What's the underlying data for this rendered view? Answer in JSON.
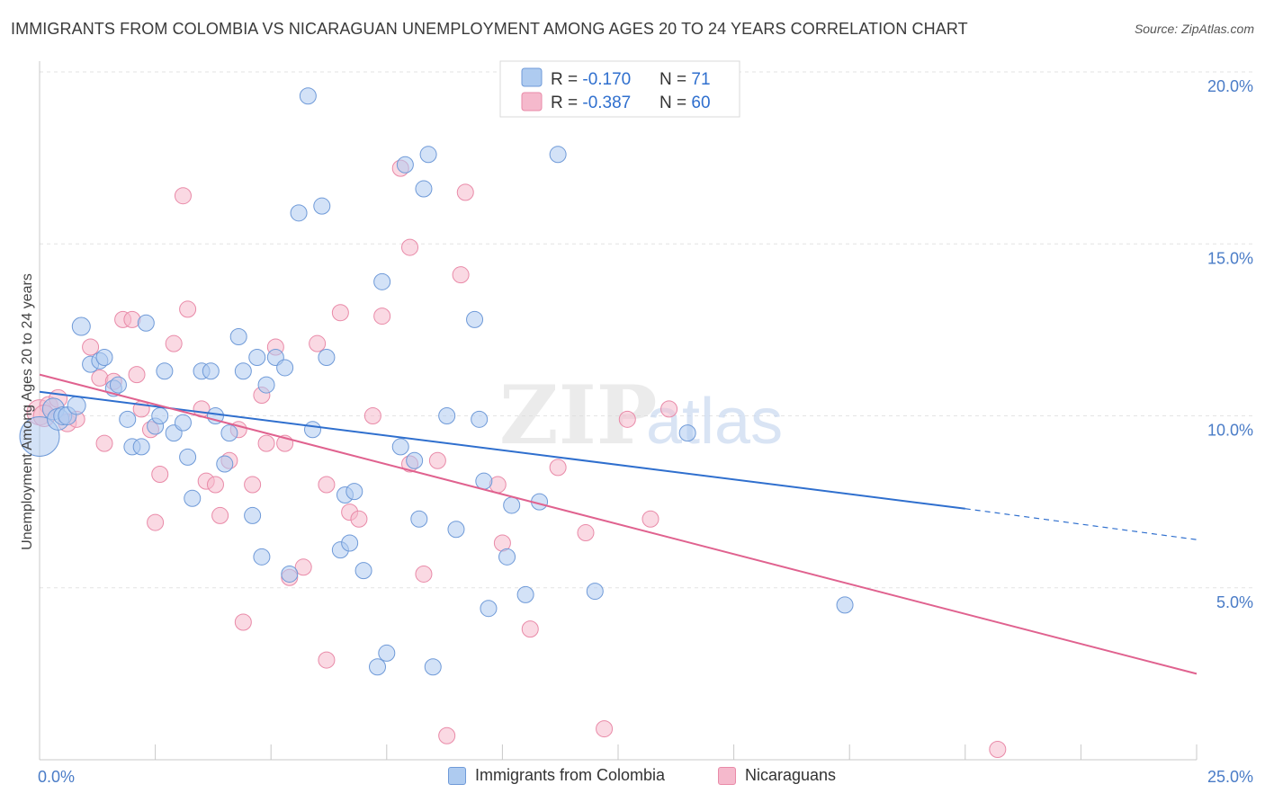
{
  "header": {
    "title": "IMMIGRANTS FROM COLOMBIA VS NICARAGUAN UNEMPLOYMENT AMONG AGES 20 TO 24 YEARS CORRELATION CHART",
    "source": "Source: ZipAtlas.com"
  },
  "watermark": {
    "zip": "ZIP",
    "atlas": "atlas"
  },
  "legend_box": {
    "rows": [
      {
        "r_label": "R = ",
        "r_value": "-0.170",
        "n_label": "N = ",
        "n_value": " 71"
      },
      {
        "r_label": "R = ",
        "r_value": "-0.387",
        "n_label": "N = ",
        "n_value": "60"
      }
    ]
  },
  "bottom_legend": {
    "items": [
      {
        "label": "Immigrants from Colombia"
      },
      {
        "label": "Nicaraguans"
      }
    ]
  },
  "colors": {
    "blue_fill": "#aecbf0",
    "blue_stroke": "#6f9ad8",
    "blue_line": "#2f6fce",
    "pink_fill": "#f5b9cc",
    "pink_stroke": "#e98aa8",
    "pink_line": "#e0628f",
    "tick_text": "#4a7cc7"
  },
  "chart_data": {
    "type": "scatter",
    "title": "IMMIGRANTS FROM COLOMBIA VS NICARAGUAN UNEMPLOYMENT AMONG AGES 20 TO 24 YEARS CORRELATION CHART",
    "xlabel": "",
    "ylabel": "Unemployment Among Ages 20 to 24 years",
    "xlim": [
      0,
      25
    ],
    "ylim": [
      0,
      20
    ],
    "x_tick_labels": [
      "0.0%",
      "25.0%"
    ],
    "y_tick_labels": [
      "5.0%",
      "10.0%",
      "15.0%",
      "20.0%"
    ],
    "y_ticks": [
      5,
      10,
      15,
      20
    ],
    "grid": true,
    "legend_position": "top-center",
    "series": [
      {
        "name": "Immigrants from Colombia",
        "r": -0.17,
        "n": 71,
        "trend": {
          "x0": 0,
          "y0": 10.7,
          "x1": 20,
          "y1": 7.3,
          "dashed_to_x": 25,
          "dashed_to_y": 6.4
        },
        "points": [
          [
            0.0,
            9.4,
            22
          ],
          [
            0.3,
            10.2,
            12
          ],
          [
            0.4,
            9.9,
            12
          ],
          [
            0.5,
            10.0,
            10
          ],
          [
            0.6,
            10.0,
            10
          ],
          [
            0.8,
            10.3,
            10
          ],
          [
            0.9,
            12.6,
            10
          ],
          [
            1.1,
            11.5,
            9
          ],
          [
            1.3,
            11.6,
            9
          ],
          [
            1.4,
            11.7,
            9
          ],
          [
            1.6,
            10.8,
            9
          ],
          [
            1.7,
            10.9,
            9
          ],
          [
            1.9,
            9.9,
            9
          ],
          [
            2.0,
            9.1,
            9
          ],
          [
            2.2,
            9.1,
            9
          ],
          [
            2.3,
            12.7,
            9
          ],
          [
            2.5,
            9.7,
            9
          ],
          [
            2.6,
            10.0,
            9
          ],
          [
            2.7,
            11.3,
            9
          ],
          [
            2.9,
            9.5,
            9
          ],
          [
            3.1,
            9.8,
            9
          ],
          [
            3.2,
            8.8,
            9
          ],
          [
            3.3,
            7.6,
            9
          ],
          [
            3.5,
            11.3,
            9
          ],
          [
            3.7,
            11.3,
            9
          ],
          [
            3.8,
            10.0,
            9
          ],
          [
            4.0,
            8.6,
            9
          ],
          [
            4.1,
            9.5,
            9
          ],
          [
            4.3,
            12.3,
            9
          ],
          [
            4.4,
            11.3,
            9
          ],
          [
            4.6,
            7.1,
            9
          ],
          [
            4.7,
            11.7,
            9
          ],
          [
            4.8,
            5.9,
            9
          ],
          [
            4.9,
            10.9,
            9
          ],
          [
            5.1,
            11.7,
            9
          ],
          [
            5.3,
            11.4,
            9
          ],
          [
            5.4,
            5.4,
            9
          ],
          [
            5.6,
            15.9,
            9
          ],
          [
            5.8,
            19.3,
            9
          ],
          [
            5.9,
            9.6,
            9
          ],
          [
            6.1,
            16.1,
            9
          ],
          [
            6.2,
            11.7,
            9
          ],
          [
            6.5,
            6.1,
            9
          ],
          [
            6.6,
            7.7,
            9
          ],
          [
            6.7,
            6.3,
            9
          ],
          [
            7.0,
            5.5,
            9
          ],
          [
            7.3,
            2.7,
            9
          ],
          [
            7.4,
            13.9,
            9
          ],
          [
            7.5,
            3.1,
            9
          ],
          [
            7.8,
            9.1,
            9
          ],
          [
            7.9,
            17.3,
            9
          ],
          [
            8.1,
            8.7,
            9
          ],
          [
            8.2,
            7.0,
            9
          ],
          [
            8.3,
            16.6,
            9
          ],
          [
            8.4,
            17.6,
            9
          ],
          [
            8.5,
            2.7,
            9
          ],
          [
            8.8,
            10.0,
            9
          ],
          [
            9.0,
            6.7,
            9
          ],
          [
            9.4,
            12.8,
            9
          ],
          [
            9.5,
            9.9,
            9
          ],
          [
            9.6,
            8.1,
            9
          ],
          [
            9.7,
            4.4,
            9
          ],
          [
            10.1,
            5.9,
            9
          ],
          [
            10.2,
            7.4,
            9
          ],
          [
            10.5,
            4.8,
            9
          ],
          [
            10.8,
            7.5,
            9
          ],
          [
            11.2,
            17.6,
            9
          ],
          [
            12.0,
            4.9,
            9
          ],
          [
            14.0,
            9.5,
            9
          ],
          [
            17.4,
            4.5,
            9
          ],
          [
            6.8,
            7.8,
            9
          ]
        ]
      },
      {
        "name": "Nicaraguans",
        "r": -0.387,
        "n": 60,
        "trend": {
          "x0": 0,
          "y0": 11.2,
          "x1": 25,
          "y1": 2.5
        },
        "points": [
          [
            0.0,
            10.1,
            14
          ],
          [
            0.2,
            10.3,
            10
          ],
          [
            0.4,
            10.5,
            10
          ],
          [
            0.6,
            9.8,
            10
          ],
          [
            0.8,
            9.9,
            9
          ],
          [
            1.1,
            12.0,
            9
          ],
          [
            1.3,
            11.1,
            9
          ],
          [
            1.4,
            9.2,
            9
          ],
          [
            1.6,
            11.0,
            9
          ],
          [
            1.8,
            12.8,
            9
          ],
          [
            2.0,
            12.8,
            9
          ],
          [
            2.1,
            11.2,
            9
          ],
          [
            2.2,
            10.2,
            9
          ],
          [
            2.4,
            9.6,
            9
          ],
          [
            2.5,
            6.9,
            9
          ],
          [
            2.6,
            8.3,
            9
          ],
          [
            2.9,
            12.1,
            9
          ],
          [
            3.1,
            16.4,
            9
          ],
          [
            3.2,
            13.1,
            9
          ],
          [
            3.5,
            10.2,
            9
          ],
          [
            3.6,
            8.1,
            9
          ],
          [
            3.8,
            8.0,
            9
          ],
          [
            3.9,
            7.1,
            9
          ],
          [
            4.1,
            8.7,
            9
          ],
          [
            4.3,
            9.6,
            9
          ],
          [
            4.4,
            4.0,
            9
          ],
          [
            4.6,
            8.0,
            9
          ],
          [
            4.8,
            10.6,
            9
          ],
          [
            4.9,
            9.2,
            9
          ],
          [
            5.1,
            12.0,
            9
          ],
          [
            5.3,
            9.2,
            9
          ],
          [
            5.4,
            5.3,
            9
          ],
          [
            5.7,
            5.6,
            9
          ],
          [
            6.0,
            12.1,
            9
          ],
          [
            6.2,
            8.0,
            9
          ],
          [
            6.2,
            2.9,
            9
          ],
          [
            6.5,
            13.0,
            9
          ],
          [
            6.7,
            7.2,
            9
          ],
          [
            6.9,
            7.0,
            9
          ],
          [
            7.2,
            10.0,
            9
          ],
          [
            7.4,
            12.9,
            9
          ],
          [
            7.8,
            17.2,
            9
          ],
          [
            8.0,
            14.9,
            9
          ],
          [
            8.3,
            5.4,
            9
          ],
          [
            8.6,
            8.7,
            9
          ],
          [
            8.8,
            0.7,
            9
          ],
          [
            9.1,
            14.1,
            9
          ],
          [
            9.2,
            16.5,
            9
          ],
          [
            9.9,
            8.0,
            9
          ],
          [
            10.0,
            6.3,
            9
          ],
          [
            10.6,
            3.8,
            9
          ],
          [
            11.2,
            8.5,
            9
          ],
          [
            11.8,
            6.6,
            9
          ],
          [
            12.2,
            0.9,
            9
          ],
          [
            12.7,
            9.9,
            9
          ],
          [
            13.2,
            7.0,
            9
          ],
          [
            13.6,
            10.2,
            9
          ],
          [
            20.7,
            0.3,
            9
          ],
          [
            0.1,
            10.0,
            12
          ],
          [
            8.0,
            8.6,
            9
          ]
        ]
      }
    ]
  }
}
